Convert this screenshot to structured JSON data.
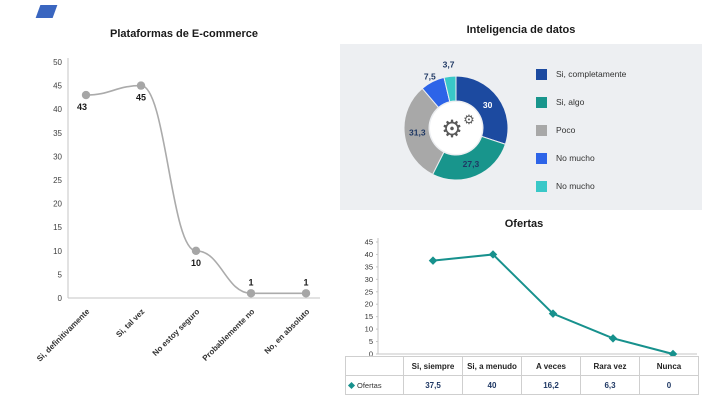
{
  "corner_shape": {
    "color": "#3a66c0"
  },
  "chart_data": [
    {
      "id": "ecommerce",
      "type": "line",
      "title": "Plataformas de E-commerce",
      "categories": [
        "Si, definitivamente",
        "Si, tal vez",
        "No estoy seguro",
        "Probablemente no",
        "No, en absoluto"
      ],
      "values": [
        43,
        45,
        10,
        1,
        1
      ],
      "data_labels": [
        "43",
        "45",
        "10",
        "1",
        "1"
      ],
      "label_positions": [
        "below",
        "below",
        "below",
        "above",
        "above"
      ],
      "ylim": [
        0,
        50
      ],
      "ytick_step": 5,
      "line_color": "#ababab",
      "marker_color": "#a6a6a6",
      "smooth": true,
      "grid": false,
      "legend_position": "none"
    },
    {
      "id": "inteligencia-de-datos",
      "type": "pie",
      "donut": true,
      "title": "Inteligencia de datos",
      "labels": [
        "Si, completamente",
        "Si, algo",
        "Poco",
        "No mucho",
        "No mucho"
      ],
      "values": [
        30,
        27.3,
        31.3,
        7.5,
        3.7
      ],
      "value_labels": [
        "30",
        "27,3",
        "31,3",
        "7,5",
        "3,7"
      ],
      "colors": [
        "#1c4aa0",
        "#18958c",
        "#a8a8a8",
        "#2d64e8",
        "#39c8c8"
      ],
      "label_color_inside_first": "#ffffff",
      "label_color": "#1f3864",
      "center_icon": "gears-icon",
      "panel_bg": "#edeff2",
      "legend_position": "right"
    },
    {
      "id": "ofertas",
      "type": "line",
      "title": "Ofertas",
      "series_name": "Ofertas",
      "categories": [
        "Si, siempre",
        "Si, a menudo",
        "A veces",
        "Rara vez",
        "Nunca"
      ],
      "values": [
        37.5,
        40,
        16.2,
        6.3,
        0
      ],
      "table_values": [
        "37,5",
        "40",
        "16,2",
        "6,3",
        "0"
      ],
      "ylim": [
        0,
        45
      ],
      "ytick_step": 5,
      "line_color": "#17918d",
      "marker": "diamond",
      "data_table": true,
      "grid": false
    }
  ]
}
